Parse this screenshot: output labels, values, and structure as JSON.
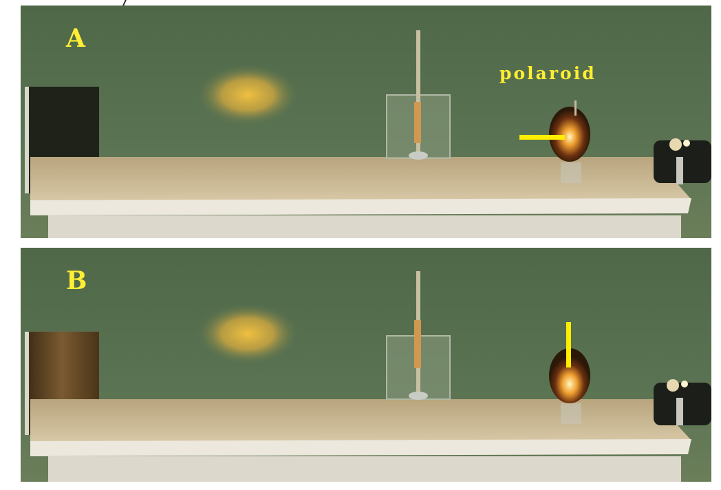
{
  "panels": [
    {
      "label": "A",
      "arrow": "horizontal"
    },
    {
      "label": "B",
      "arrow": "vertical"
    }
  ],
  "annotation": {
    "polaroid_label": "polaroid"
  },
  "colors": {
    "wall": "#56704f",
    "table_top": "#c9b48d",
    "table_edge": "#ece8de",
    "label": "#ffee33",
    "marker": "#ffee00"
  }
}
